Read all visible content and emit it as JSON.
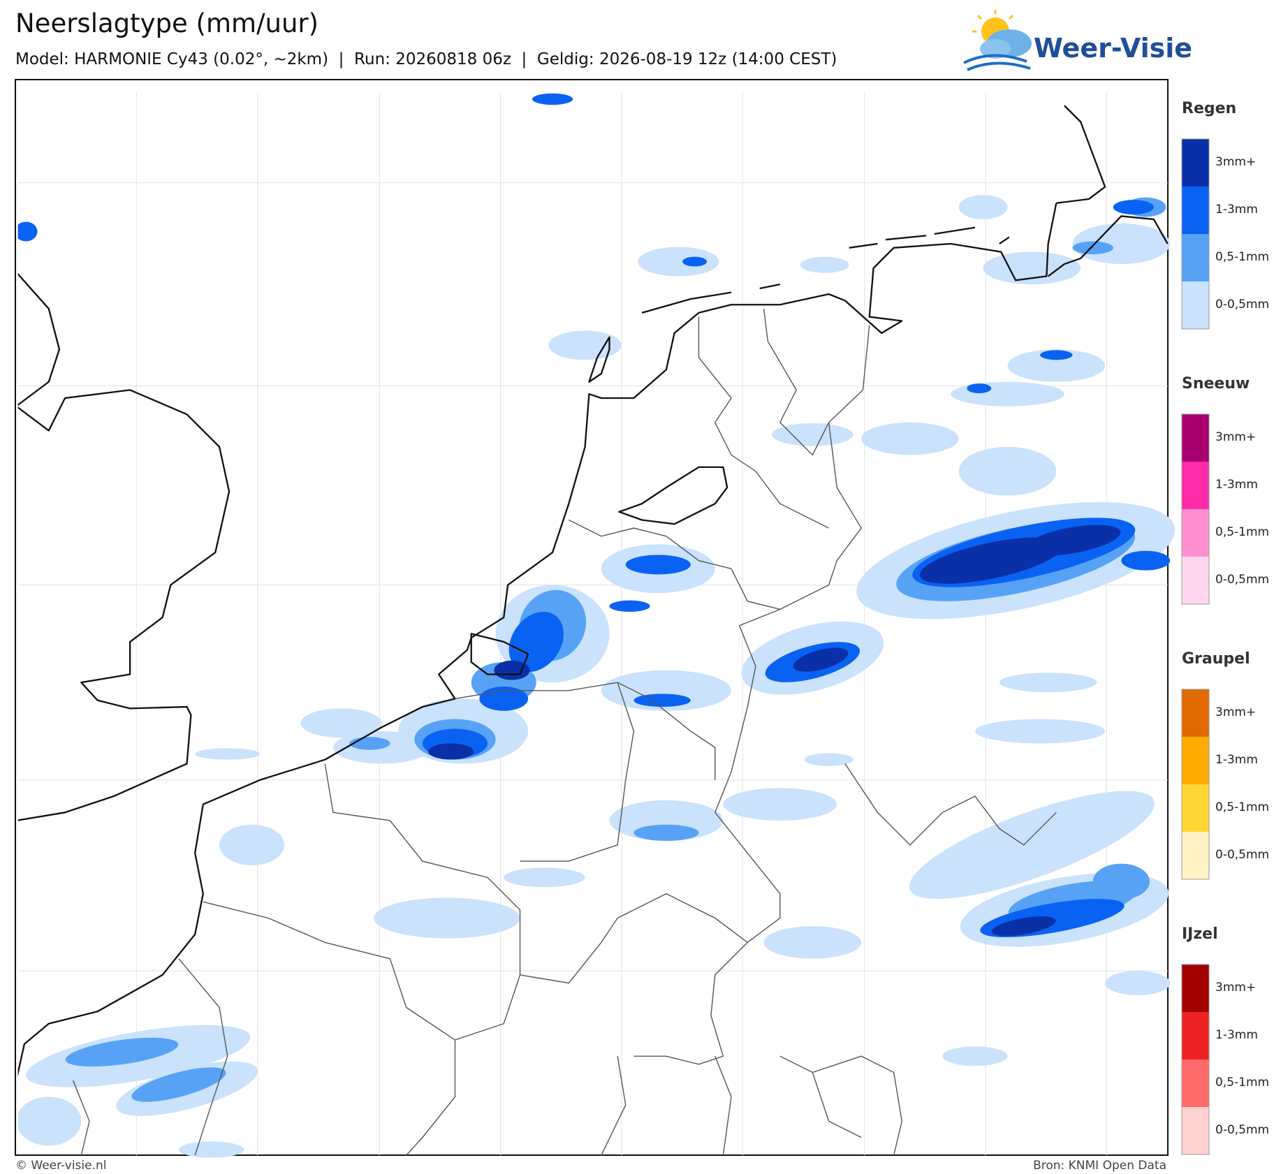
{
  "header": {
    "title": "Neerslagtype (mm/uur)",
    "subtitle": "Model: HARMONIE Cy43 (0.02°, ~2km)  |  Run: 20260818 06z  |  Geldig: 2026-08-19 12z (14:00 CEST)"
  },
  "logo": {
    "text": "Weer-Visie"
  },
  "legend": {
    "groups": [
      {
        "title": "Regen",
        "items": [
          {
            "label": "3mm+",
            "color": "#0a30a8"
          },
          {
            "label": "1-3mm",
            "color": "#0a62f2"
          },
          {
            "label": "0,5-1mm",
            "color": "#58a2f6"
          },
          {
            "label": "0-0,5mm",
            "color": "#cae2fc"
          }
        ]
      },
      {
        "title": "Sneeuw",
        "items": [
          {
            "label": "3mm+",
            "color": "#a8006e"
          },
          {
            "label": "1-3mm",
            "color": "#ff2aa8"
          },
          {
            "label": "0,5-1mm",
            "color": "#ff8fd0"
          },
          {
            "label": "0-0,5mm",
            "color": "#ffd8ef"
          }
        ]
      },
      {
        "title": "Graupel",
        "items": [
          {
            "label": "3mm+",
            "color": "#e06a00"
          },
          {
            "label": "1-3mm",
            "color": "#ffaa00"
          },
          {
            "label": "0,5-1mm",
            "color": "#ffd633"
          },
          {
            "label": "0-0,5mm",
            "color": "#fff2c4"
          }
        ]
      },
      {
        "title": "IJzel",
        "items": [
          {
            "label": "3mm+",
            "color": "#a30000"
          },
          {
            "label": "1-3mm",
            "color": "#ee2222"
          },
          {
            "label": "0,5-1mm",
            "color": "#ff6a6a"
          },
          {
            "label": "0-0,5mm",
            "color": "#ffd2d2"
          }
        ]
      }
    ]
  },
  "footer": {
    "left": "© Weer-visie.nl",
    "right": "Bron: KNMI Open Data"
  }
}
